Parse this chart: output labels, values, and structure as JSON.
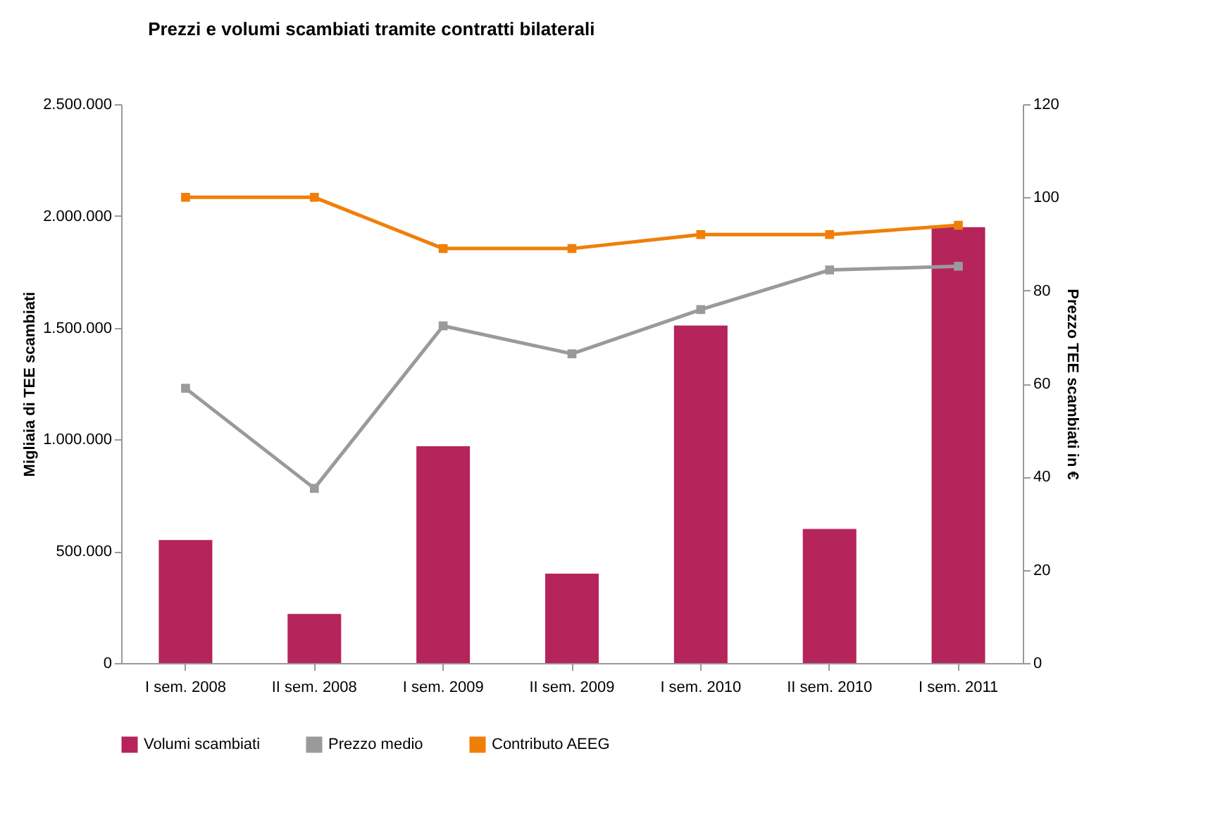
{
  "chart_data": {
    "type": "bar",
    "title": "Prezzi e volumi scambiati tramite contratti bilaterali",
    "categories": [
      "I sem. 2008",
      "II sem. 2008",
      "I sem. 2009",
      "II sem. 2009",
      "I sem. 2010",
      "II sem. 2010",
      "I sem. 2011"
    ],
    "series": [
      {
        "name": "Volumi scambiati",
        "color": "#b5245a",
        "values": [
          550000,
          220000,
          970000,
          400000,
          1510000,
          600000,
          1950000
        ]
      },
      {
        "name": "Prezzo medio",
        "type": "line",
        "axis": "y2",
        "color": "#9a9a9a",
        "values": [
          59,
          37.5,
          72.4,
          66.4,
          75.9,
          84.4,
          85.2
        ]
      },
      {
        "name": "Contributo AEEG",
        "type": "line",
        "axis": "y2",
        "color": "#f07f09",
        "values": [
          100,
          100,
          89,
          89,
          92,
          92,
          94
        ]
      }
    ],
    "ylabel": "Migliaia di TEE scambiati",
    "y2label": "Prezzo TEE scambiati in €",
    "ylim": [
      0,
      2500000
    ],
    "yticks": [
      0,
      {
        "value": 500000,
        "label": "500.000"
      },
      {
        "value": 1000000,
        "label": "1.000.000"
      },
      {
        "value": 1500000,
        "label": "1.500.000"
      },
      {
        "value": 2000000,
        "label": "2.000.000"
      },
      {
        "value": 2500000,
        "label": "2.500.000"
      }
    ],
    "y2lim": [
      0,
      120
    ],
    "y2ticks": [
      0,
      20,
      40,
      60,
      80,
      100,
      120
    ],
    "marker": "square",
    "legend": "bottom",
    "grid": false
  }
}
